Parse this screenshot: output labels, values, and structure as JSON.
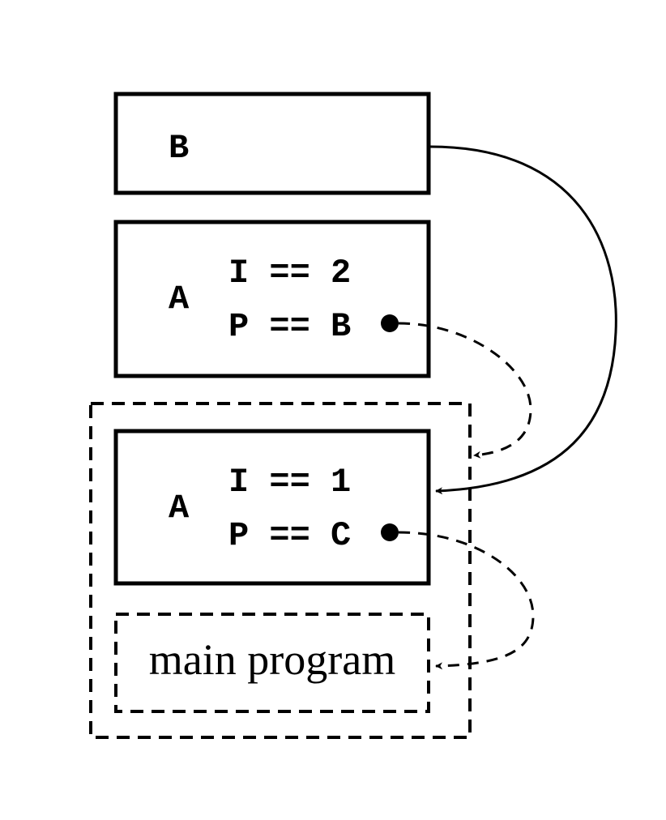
{
  "frames": {
    "frame_b": {
      "name": "B"
    },
    "frame_a2": {
      "name": "A",
      "vars": [
        "I == 2",
        "P == B"
      ]
    },
    "frame_a1": {
      "name": "A",
      "vars": [
        "I == 1",
        "P == C"
      ]
    },
    "main": {
      "label": "main program"
    }
  },
  "colors": {
    "stroke": "#000000",
    "background": "#ffffff"
  }
}
